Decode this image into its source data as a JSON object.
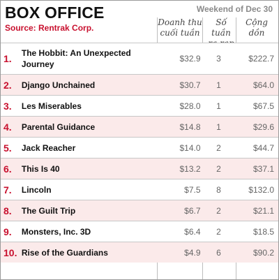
{
  "header": {
    "title": "BOX OFFICE",
    "source": "Source: Rentrak Corp.",
    "weekend": "Weekend of Dec 30",
    "col_gross": "Doanh thu cuối tuần",
    "col_weeks": "Số tuần ra rạp",
    "col_total": "Cộng dồn"
  },
  "colors": {
    "accent": "#c8102e",
    "row_alt": "#fbeaea"
  },
  "rows": [
    {
      "rank": "1.",
      "movie": "The Hobbit: An Unexpected Journey",
      "gross": "$32.9",
      "weeks": "3",
      "total": "$222.7"
    },
    {
      "rank": "2.",
      "movie": "Django Unchained",
      "gross": "$30.7",
      "weeks": "1",
      "total": "$64.0"
    },
    {
      "rank": "3.",
      "movie": "Les Miserables",
      "gross": "$28.0",
      "weeks": "1",
      "total": "$67.5"
    },
    {
      "rank": "4.",
      "movie": "Parental Guidance",
      "gross": "$14.8",
      "weeks": "1",
      "total": "$29.6"
    },
    {
      "rank": "5.",
      "movie": "Jack Reacher",
      "gross": "$14.0",
      "weeks": "2",
      "total": "$44.7"
    },
    {
      "rank": "6.",
      "movie": "This Is 40",
      "gross": "$13.2",
      "weeks": "2",
      "total": "$37.1"
    },
    {
      "rank": "7.",
      "movie": "Lincoln",
      "gross": "$7.5",
      "weeks": "8",
      "total": "$132.0"
    },
    {
      "rank": "8.",
      "movie": "The Guilt Trip",
      "gross": "$6.7",
      "weeks": "2",
      "total": "$21.1"
    },
    {
      "rank": "9.",
      "movie": "Monsters, Inc. 3D",
      "gross": "$6.4",
      "weeks": "2",
      "total": "$18.5"
    },
    {
      "rank": "10.",
      "movie": "Rise of the Guardians",
      "gross": "$4.9",
      "weeks": "6",
      "total": "$90.2"
    }
  ]
}
